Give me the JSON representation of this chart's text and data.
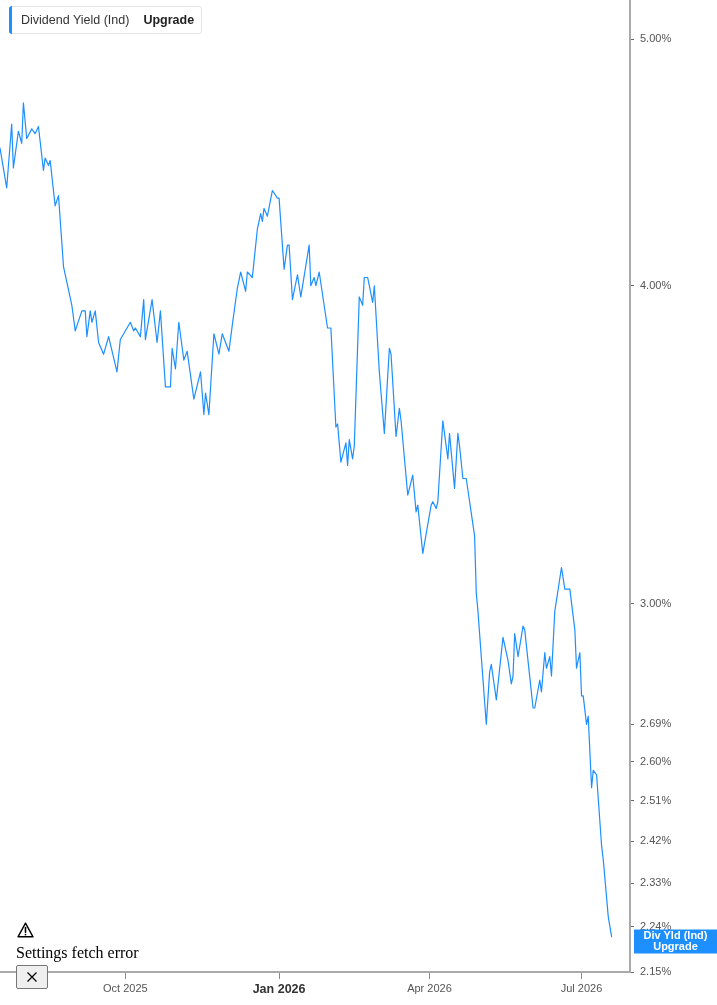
{
  "chart_data": {
    "type": "line",
    "legend": "top left",
    "log": true,
    "marker": "none",
    "line_style": "solid",
    "xlim": [
      "2025-07-18",
      "2026-07-30"
    ],
    "xticks": [
      {
        "value": "2025-10-01",
        "label": "Oct 2025"
      },
      {
        "value": "2026-01-01",
        "label": "Jan 2026"
      },
      {
        "value": "2026-04-01",
        "label": "Apr 2026"
      },
      {
        "value": "2026-07-01",
        "label": "Jul 2026"
      }
    ],
    "ylim": [
      2.15,
      5.18
    ],
    "yticks": [
      {
        "value": 2.15,
        "label": "2.15%"
      },
      {
        "value": 2.24,
        "label": "2.24%"
      },
      {
        "value": 2.33,
        "label": "2.33%"
      },
      {
        "value": 2.42,
        "label": "2.42%"
      },
      {
        "value": 2.51,
        "label": "2.51%"
      },
      {
        "value": 2.6,
        "label": "2.60%"
      },
      {
        "value": 2.69,
        "label": "2.69%"
      },
      {
        "value": 3,
        "label": "3.00%"
      },
      {
        "value": 4,
        "label": "4.00%"
      },
      {
        "value": 5,
        "label": "5.00%"
      }
    ],
    "annotations": [
      "Upgrade",
      "Div Yld (Ind)\nUpgrade",
      "Settings fetch error"
    ],
    "x": [
      "2025-07-18",
      "2025-07-22",
      "2025-07-25",
      "2025-07-26",
      "2025-07-29",
      "2025-07-31",
      "2025-08-01",
      "2025-08-03",
      "2025-08-06",
      "2025-08-08",
      "2025-08-10",
      "2025-08-13",
      "2025-08-14",
      "2025-08-16",
      "2025-08-17",
      "2025-08-20",
      "2025-08-22",
      "2025-08-25",
      "2025-08-30",
      "2025-09-01",
      "2025-09-05",
      "2025-09-07",
      "2025-09-08",
      "2025-09-10",
      "2025-09-11",
      "2025-09-13",
      "2025-09-15",
      "2025-09-18",
      "2025-09-21",
      "2025-09-26",
      "2025-09-28",
      "2025-10-04",
      "2025-10-06",
      "2025-10-07",
      "2025-10-10",
      "2025-10-12",
      "2025-10-13",
      "2025-10-17",
      "2025-10-20",
      "2025-10-22",
      "2025-10-25",
      "2025-10-28",
      "2025-10-29",
      "2025-10-31",
      "2025-11-02",
      "2025-11-05",
      "2025-11-07",
      "2025-11-11",
      "2025-11-15",
      "2025-11-17",
      "2025-11-18",
      "2025-11-20",
      "2025-11-23",
      "2025-11-26",
      "2025-11-28",
      "2025-12-02",
      "2025-12-04",
      "2025-12-07",
      "2025-12-09",
      "2025-12-12",
      "2025-12-13",
      "2025-12-16",
      "2025-12-19",
      "2025-12-21",
      "2025-12-22",
      "2025-12-23",
      "2025-12-25",
      "2025-12-28",
      "2025-12-31",
      "2026-01-01",
      "2026-01-04",
      "2026-01-06",
      "2026-01-07",
      "2026-01-09",
      "2026-01-12",
      "2026-01-14",
      "2026-01-19",
      "2026-01-20",
      "2026-01-22",
      "2026-01-23",
      "2026-01-25",
      "2026-01-30",
      "2026-02-01",
      "2026-02-04",
      "2026-02-05",
      "2026-02-07",
      "2026-02-10",
      "2026-02-11",
      "2026-02-12",
      "2026-02-14",
      "2026-02-15",
      "2026-02-18",
      "2026-02-20",
      "2026-02-21",
      "2026-02-23",
      "2026-02-26",
      "2026-02-27",
      "2026-03-02",
      "2026-03-05",
      "2026-03-08",
      "2026-03-09",
      "2026-03-12",
      "2026-03-14",
      "2026-03-15",
      "2026-03-19",
      "2026-03-22",
      "2026-03-24",
      "2026-03-25",
      "2026-03-28",
      "2026-04-02",
      "2026-04-03",
      "2026-04-05",
      "2026-04-06",
      "2026-04-09",
      "2026-04-12",
      "2026-04-13",
      "2026-04-16",
      "2026-04-18",
      "2026-04-19",
      "2026-04-21",
      "2026-04-23",
      "2026-04-28",
      "2026-04-29",
      "2026-04-30",
      "2026-05-05",
      "2026-05-07",
      "2026-05-08",
      "2026-05-11",
      "2026-05-15",
      "2026-05-18",
      "2026-05-20",
      "2026-05-21",
      "2026-05-22",
      "2026-05-24",
      "2026-05-27",
      "2026-05-28",
      "2026-06-02",
      "2026-06-03",
      "2026-06-06",
      "2026-06-07",
      "2026-06-09",
      "2026-06-10",
      "2026-06-12",
      "2026-06-13",
      "2026-06-15",
      "2026-06-19",
      "2026-06-21",
      "2026-06-22",
      "2026-06-24",
      "2026-06-27",
      "2026-06-28",
      "2026-06-30",
      "2026-07-01",
      "2026-07-02",
      "2026-07-04",
      "2026-07-05",
      "2026-07-07",
      "2026-07-08",
      "2026-07-10",
      "2026-07-13",
      "2026-07-14",
      "2026-07-17",
      "2026-07-19"
    ],
    "series": [
      {
        "name": "Dividend Yield (Ind)",
        "color": "#1e8fff",
        "values": [
          4.53,
          4.37,
          4.63,
          4.45,
          4.6,
          4.55,
          4.72,
          4.57,
          4.61,
          4.59,
          4.62,
          4.44,
          4.49,
          4.46,
          4.48,
          4.3,
          4.34,
          4.07,
          3.93,
          3.84,
          3.91,
          3.91,
          3.82,
          3.91,
          3.87,
          3.91,
          3.8,
          3.76,
          3.82,
          3.7,
          3.81,
          3.87,
          3.84,
          3.85,
          3.82,
          3.95,
          3.81,
          3.95,
          3.8,
          3.91,
          3.65,
          3.65,
          3.78,
          3.71,
          3.87,
          3.74,
          3.77,
          3.61,
          3.7,
          3.56,
          3.63,
          3.56,
          3.83,
          3.76,
          3.83,
          3.77,
          3.86,
          3.99,
          4.05,
          3.98,
          4.05,
          4.03,
          4.21,
          4.27,
          4.24,
          4.29,
          4.26,
          4.36,
          4.33,
          4.33,
          4.06,
          4.15,
          4.15,
          3.95,
          4.04,
          3.96,
          4.15,
          4.0,
          4.03,
          4.0,
          4.05,
          3.85,
          3.85,
          3.52,
          3.53,
          3.41,
          3.47,
          3.4,
          3.48,
          3.42,
          3.46,
          3.96,
          3.93,
          4.03,
          4.03,
          3.94,
          4.0,
          3.7,
          3.5,
          3.78,
          3.76,
          3.49,
          3.58,
          3.54,
          3.31,
          3.37,
          3.26,
          3.28,
          3.14,
          3.28,
          3.29,
          3.27,
          3.29,
          3.54,
          3.42,
          3.5,
          3.33,
          3.5,
          3.46,
          3.36,
          3.36,
          3.19,
          3.03,
          2.98,
          2.69,
          2.82,
          2.84,
          2.75,
          2.91,
          2.85,
          2.79,
          2.81,
          2.92,
          2.86,
          2.94,
          2.93,
          2.73,
          2.73,
          2.8,
          2.77,
          2.87,
          2.83,
          2.86,
          2.81,
          2.98,
          3.1,
          3.04,
          3.04,
          3.04,
          2.93,
          2.83,
          2.87,
          2.76,
          2.76,
          2.69,
          2.71,
          2.54,
          2.58,
          2.57,
          2.41,
          2.38,
          2.26,
          2.22
        ]
      }
    ]
  }
}
